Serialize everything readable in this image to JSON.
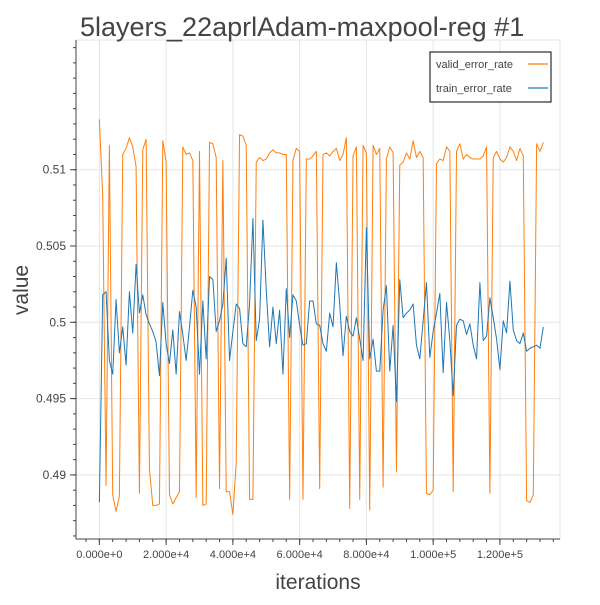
{
  "chart_data": {
    "type": "line",
    "title": "5layers_22aprlAdam-maxpool-reg #1",
    "xlabel": "iterations",
    "ylabel": "value",
    "xlim": [
      -7000,
      138000
    ],
    "ylim": [
      0.4858,
      0.5185
    ],
    "x_ticks": [
      0,
      20000,
      40000,
      60000,
      80000,
      100000,
      120000
    ],
    "x_tick_labels": [
      "0.000e+0",
      "2.000e+4",
      "4.000e+4",
      "6.000e+4",
      "8.000e+4",
      "1.000e+5",
      "1.200e+5"
    ],
    "x_minor_step": 4000,
    "y_ticks": [
      0.49,
      0.495,
      0.5,
      0.505,
      0.51
    ],
    "y_tick_labels": [
      "0.49",
      "0.495",
      "0.5",
      "0.505",
      "0.51"
    ],
    "y_minor_step": 0.001,
    "grid": true,
    "legend_position": "top-right",
    "x": [
      0,
      1000,
      2000,
      3000,
      4000,
      5000,
      6000,
      7000,
      8000,
      9000,
      10000,
      11000,
      12000,
      13000,
      14000,
      15000,
      16000,
      17000,
      18000,
      19000,
      20000,
      21000,
      22000,
      23000,
      24000,
      25000,
      26000,
      27000,
      28000,
      29000,
      30000,
      31000,
      32000,
      33000,
      34000,
      35000,
      36000,
      37000,
      38000,
      39000,
      40000,
      41000,
      42000,
      43000,
      44000,
      45000,
      46000,
      47000,
      48000,
      49000,
      50000,
      51000,
      52000,
      53000,
      54000,
      55000,
      56000,
      57000,
      58000,
      59000,
      60000,
      61000,
      62000,
      63000,
      64000,
      65000,
      66000,
      67000,
      68000,
      69000,
      70000,
      71000,
      72000,
      73000,
      74000,
      75000,
      76000,
      77000,
      78000,
      79000,
      80000,
      81000,
      82000,
      83000,
      84000,
      85000,
      86000,
      87000,
      88000,
      89000,
      90000,
      91000,
      92000,
      93000,
      94000,
      95000,
      96000,
      97000,
      98000,
      99000,
      100000,
      101000,
      102000,
      103000,
      104000,
      105000,
      106000,
      107000,
      108000,
      109000,
      110000,
      111000,
      112000,
      113000,
      114000,
      115000,
      116000,
      117000,
      118000,
      119000,
      120000,
      121000,
      122000,
      123000,
      124000,
      125000,
      126000,
      127000,
      128000,
      129000,
      130000,
      131000,
      132000,
      133000
    ],
    "series": [
      {
        "name": "valid_error_rate",
        "color": "#ff7f0e",
        "values": [
          0.5133,
          0.5083,
          0.4893,
          0.5116,
          0.4887,
          0.4876,
          0.4886,
          0.511,
          0.5114,
          0.5121,
          0.5115,
          0.5102,
          0.4888,
          0.5113,
          0.512,
          0.4904,
          0.488,
          0.488,
          0.4881,
          0.5119,
          0.5105,
          0.4887,
          0.4881,
          0.4885,
          0.4889,
          0.5115,
          0.511,
          0.5111,
          0.5106,
          0.4885,
          0.5112,
          0.488,
          0.4881,
          0.5118,
          0.5117,
          0.5108,
          0.4891,
          0.5106,
          0.4889,
          0.4889,
          0.4874,
          0.4908,
          0.5123,
          0.5122,
          0.5116,
          0.4884,
          0.4884,
          0.5105,
          0.5108,
          0.5106,
          0.5107,
          0.5111,
          0.5113,
          0.5111,
          0.5111,
          0.511,
          0.511,
          0.4884,
          0.5106,
          0.5114,
          0.5112,
          0.4884,
          0.5107,
          0.5107,
          0.5109,
          0.5112,
          0.4891,
          0.511,
          0.5111,
          0.5109,
          0.5112,
          0.5114,
          0.5106,
          0.511,
          0.5121,
          0.4878,
          0.5109,
          0.5115,
          0.4884,
          0.5116,
          0.5111,
          0.4877,
          0.5116,
          0.511,
          0.5114,
          0.4892,
          0.5107,
          0.5115,
          0.5111,
          0.4902,
          0.5103,
          0.5105,
          0.5111,
          0.5107,
          0.5119,
          0.5108,
          0.5112,
          0.5108,
          0.4888,
          0.4887,
          0.489,
          0.5104,
          0.5107,
          0.5106,
          0.5115,
          0.5112,
          0.4889,
          0.5112,
          0.5117,
          0.5107,
          0.511,
          0.5108,
          0.5107,
          0.5107,
          0.5107,
          0.5109,
          0.5115,
          0.4888,
          0.5108,
          0.5112,
          0.5107,
          0.5105,
          0.5108,
          0.5115,
          0.5112,
          0.5106,
          0.5114,
          0.5109,
          0.4883,
          0.4882,
          0.4887,
          0.5117,
          0.5112,
          0.5118
        ]
      },
      {
        "name": "train_error_rate",
        "color": "#1f77b4",
        "values": [
          0.4882,
          0.5018,
          0.502,
          0.4975,
          0.4966,
          0.5015,
          0.498,
          0.4997,
          0.4972,
          0.502,
          0.4993,
          0.5038,
          0.5006,
          0.5018,
          0.5005,
          0.4999,
          0.4994,
          0.4987,
          0.4965,
          0.5013,
          0.4986,
          0.4973,
          0.4995,
          0.4966,
          0.5007,
          0.4992,
          0.4975,
          0.4997,
          0.5021,
          0.501,
          0.4966,
          0.5014,
          0.4976,
          0.503,
          0.5028,
          0.4994,
          0.5001,
          0.5012,
          0.5042,
          0.4975,
          0.4994,
          0.5012,
          0.5009,
          0.4986,
          0.4984,
          0.5012,
          0.5068,
          0.4988,
          0.5002,
          0.5067,
          0.5021,
          0.4984,
          0.501,
          0.4986,
          0.5008,
          0.4966,
          0.5022,
          0.499,
          0.5018,
          0.5014,
          0.4998,
          0.4985,
          0.4986,
          0.5014,
          0.5014,
          0.4999,
          0.4998,
          0.4986,
          0.4981,
          0.5006,
          0.4997,
          0.5039,
          0.5012,
          0.4978,
          0.5004,
          0.4994,
          0.4991,
          0.5003,
          0.4989,
          0.4975,
          0.5062,
          0.4976,
          0.4989,
          0.4968,
          0.4968,
          0.5008,
          0.5024,
          0.4968,
          0.4998,
          0.4948,
          0.5028,
          0.5003,
          0.5006,
          0.5008,
          0.5012,
          0.4985,
          0.4976,
          0.5001,
          0.5026,
          0.4977,
          0.4994,
          0.5006,
          0.5019,
          0.4967,
          0.5013,
          0.4988,
          0.4952,
          0.4998,
          0.5002,
          0.5001,
          0.4992,
          0.4999,
          0.4985,
          0.4976,
          0.5026,
          0.4988,
          0.4991,
          0.5016,
          0.5003,
          0.4989,
          0.4969,
          0.5001,
          0.4993,
          0.5027,
          0.4995,
          0.4988,
          0.4986,
          0.4993,
          0.4981,
          0.4983,
          0.4984,
          0.4985,
          0.4983,
          0.4997
        ]
      }
    ]
  }
}
